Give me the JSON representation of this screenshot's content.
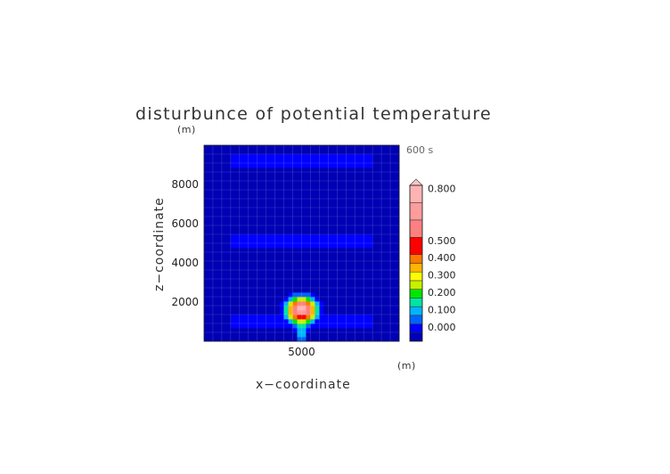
{
  "chart_data": {
    "type": "heatmap",
    "title": "disturbunce of potential temperature",
    "xlabel": "x−coordinate",
    "ylabel": "z−coordinate",
    "x_unit": "(m)",
    "y_unit": "(m)",
    "time_label": "600 s",
    "x_ticks": [
      5000
    ],
    "x_tick_labels": [
      "5000"
    ],
    "y_ticks": [
      2000,
      4000,
      6000,
      8000
    ],
    "y_tick_labels": [
      "2000",
      "4000",
      "6000",
      "8000"
    ],
    "xlim": [
      0,
      10000
    ],
    "ylim": [
      0,
      10000
    ],
    "bubble": {
      "center_x": 5000,
      "center_z": 1600,
      "max_value": 0.85,
      "base_z": 0
    },
    "colorbar": {
      "levels": [
        0.0,
        0.05,
        0.1,
        0.15,
        0.2,
        0.25,
        0.3,
        0.35,
        0.4,
        0.45,
        0.5,
        0.6,
        0.7,
        0.8,
        0.9
      ],
      "colors": [
        "#000070",
        "#0000b4",
        "#0000ff",
        "#0064ff",
        "#00b4ff",
        "#00e6a0",
        "#00e600",
        "#c8f000",
        "#ffff00",
        "#ffb400",
        "#ff7800",
        "#ff0000",
        "#ff8080",
        "#ff9c9c",
        "#ffb4b4",
        "#ffc8c8"
      ],
      "labels": [
        "0.000",
        "0.100",
        "0.200",
        "0.300",
        "0.400",
        "0.500",
        "0.800"
      ],
      "label_values": [
        0.0,
        0.1,
        0.2,
        0.3,
        0.4,
        0.5,
        0.8
      ]
    }
  }
}
